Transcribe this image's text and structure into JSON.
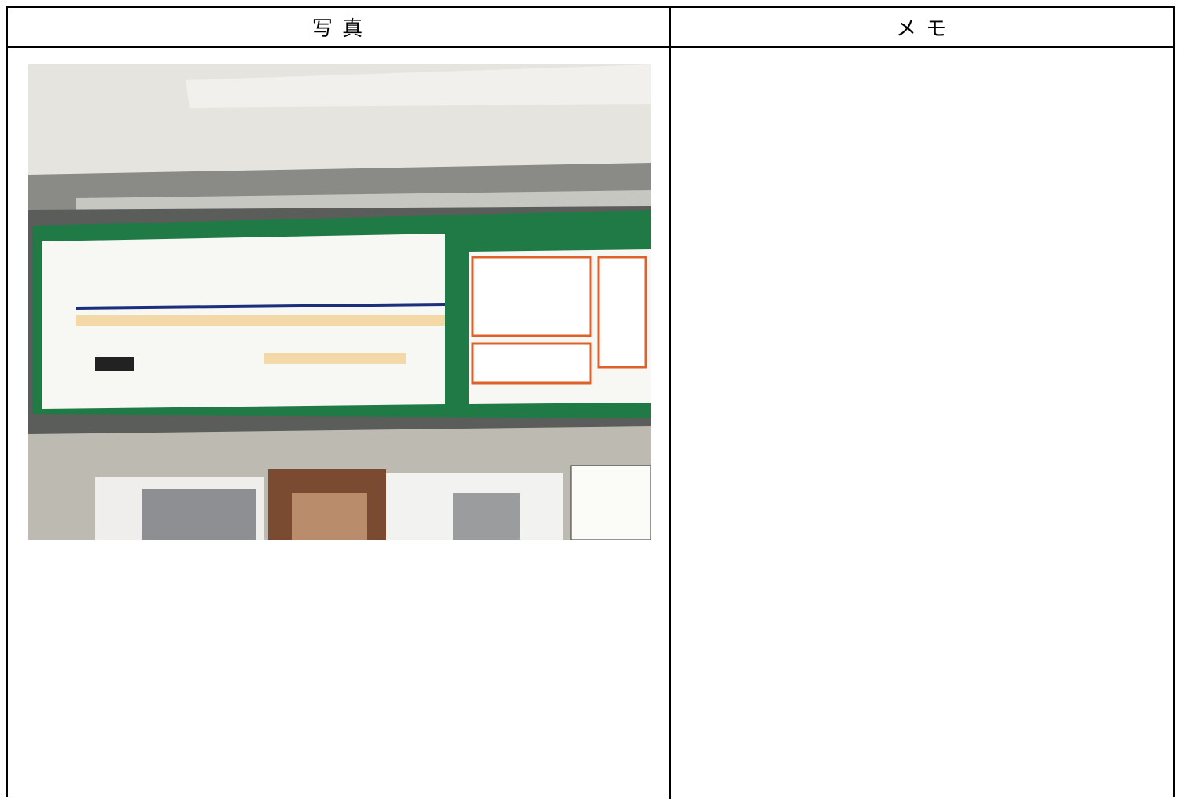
{
  "table": {
    "headers": [
      "写 真",
      "メ モ"
    ]
  }
}
